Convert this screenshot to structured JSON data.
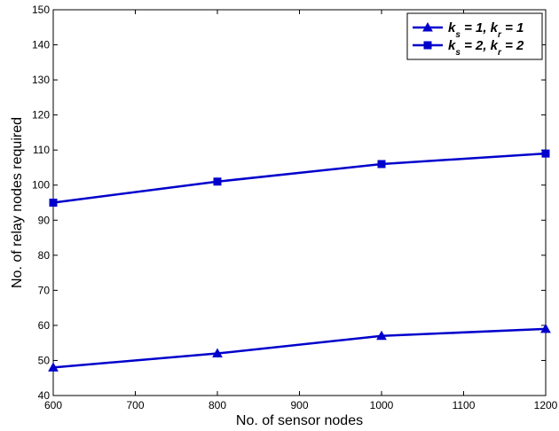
{
  "chart_data": {
    "type": "line",
    "xlabel": "No. of sensor nodes",
    "ylabel": "No. of relay nodes required",
    "xlim": [
      600,
      1200
    ],
    "ylim": [
      40,
      150
    ],
    "xticks": [
      600,
      700,
      800,
      900,
      1000,
      1100,
      1200
    ],
    "yticks": [
      40,
      50,
      60,
      70,
      80,
      90,
      100,
      110,
      120,
      130,
      140,
      150
    ],
    "grid": false,
    "legend_position": "top-right",
    "x": [
      600,
      800,
      1000,
      1200
    ],
    "series": [
      {
        "name": "k_s = 1, k_r = 1",
        "legend_parts": [
          "k",
          "s",
          " = 1, k",
          "r",
          " = 1"
        ],
        "marker": "triangle",
        "color": "#0000CC",
        "values": [
          48,
          52,
          57,
          59
        ]
      },
      {
        "name": "k_s = 2, k_r = 2",
        "legend_parts": [
          "k",
          "s",
          " = 2, k",
          "r",
          " = 2"
        ],
        "marker": "square",
        "color": "#0000CC",
        "values": [
          95,
          101,
          106,
          109
        ]
      }
    ]
  }
}
